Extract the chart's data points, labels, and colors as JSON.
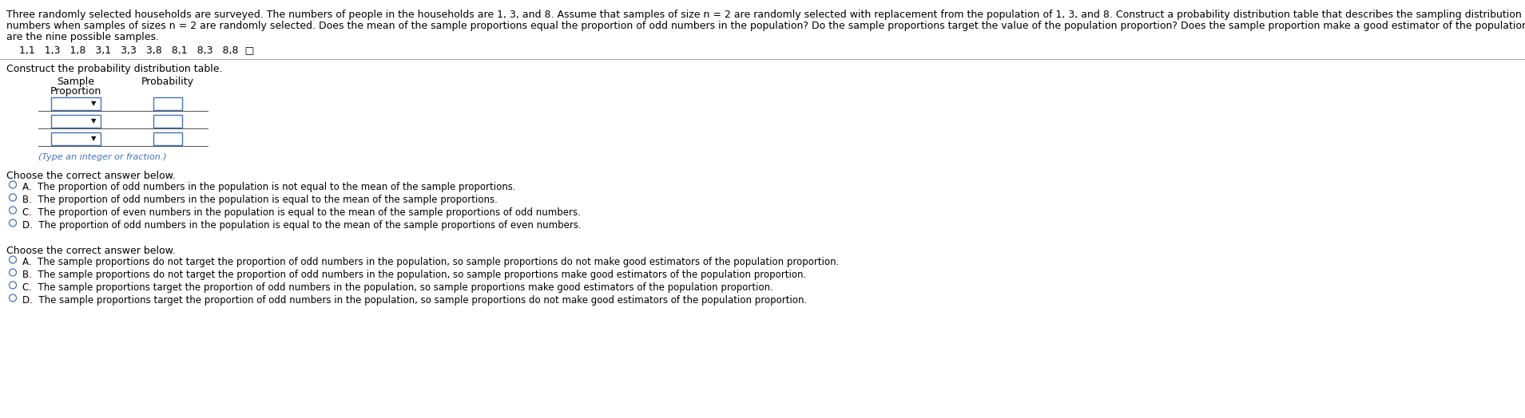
{
  "bg_color": "#ffffff",
  "text_color": "#000000",
  "font_size_body": 9.0,
  "font_size_small": 8.5,
  "paragraph_text_line1": "Three randomly selected households are surveyed. The numbers of people in the households are 1, 3, and 8. Assume that samples of size n = 2 are randomly selected with replacement from the population of 1, 3, and 8. Construct a probability distribution table that describes the sampling distribution of the proportion of odd",
  "paragraph_text_line2": "numbers when samples of sizes n = 2 are randomly selected. Does the mean of the sample proportions equal the proportion of odd numbers in the population? Do the sample proportions target the value of the population proportion? Does the sample proportion make a good estimator of the population proportion? Listed below",
  "paragraph_text_line3": "are the nine possible samples.",
  "samples_line": "    1,1   1,3   1,8   3,1   3,3   3,8   8,1   8,3   8,8  □",
  "construct_label": "Construct the probability distribution table.",
  "table_col1_header_line1": "Sample",
  "table_col1_header_line2": "Proportion",
  "table_col2_header": "Probability",
  "table_note": "(Type an integer or fraction.)",
  "section1_label": "Choose the correct answer below.",
  "option_A1": "A.  The proportion of odd numbers in the population is not equal to the mean of the sample proportions.",
  "option_B1": "B.  The proportion of odd numbers in the population is equal to the mean of the sample proportions.",
  "option_C1": "C.  The proportion of even numbers in the population is equal to the mean of the sample proportions of odd numbers.",
  "option_D1": "D.  The proportion of odd numbers in the population is equal to the mean of the sample proportions of even numbers.",
  "section2_label": "Choose the correct answer below.",
  "option_A2": "A.  The sample proportions do not target the proportion of odd numbers in the population, so sample proportions do not make good estimators of the population proportion.",
  "option_B2": "B.  The sample proportions do not target the proportion of odd numbers in the population, so sample proportions make good estimators of the population proportion.",
  "option_C2": "C.  The sample proportions target the proportion of odd numbers in the population, so sample proportions make good estimators of the population proportion.",
  "option_D2": "D.  The sample proportions target the proportion of odd numbers in the population, so sample proportions do not make good estimators of the population proportion.",
  "radio_color": "#4472c4",
  "table_border_color": "#4472c4",
  "dropdown_border_color": "#4472c4",
  "divider_color": "#999999"
}
